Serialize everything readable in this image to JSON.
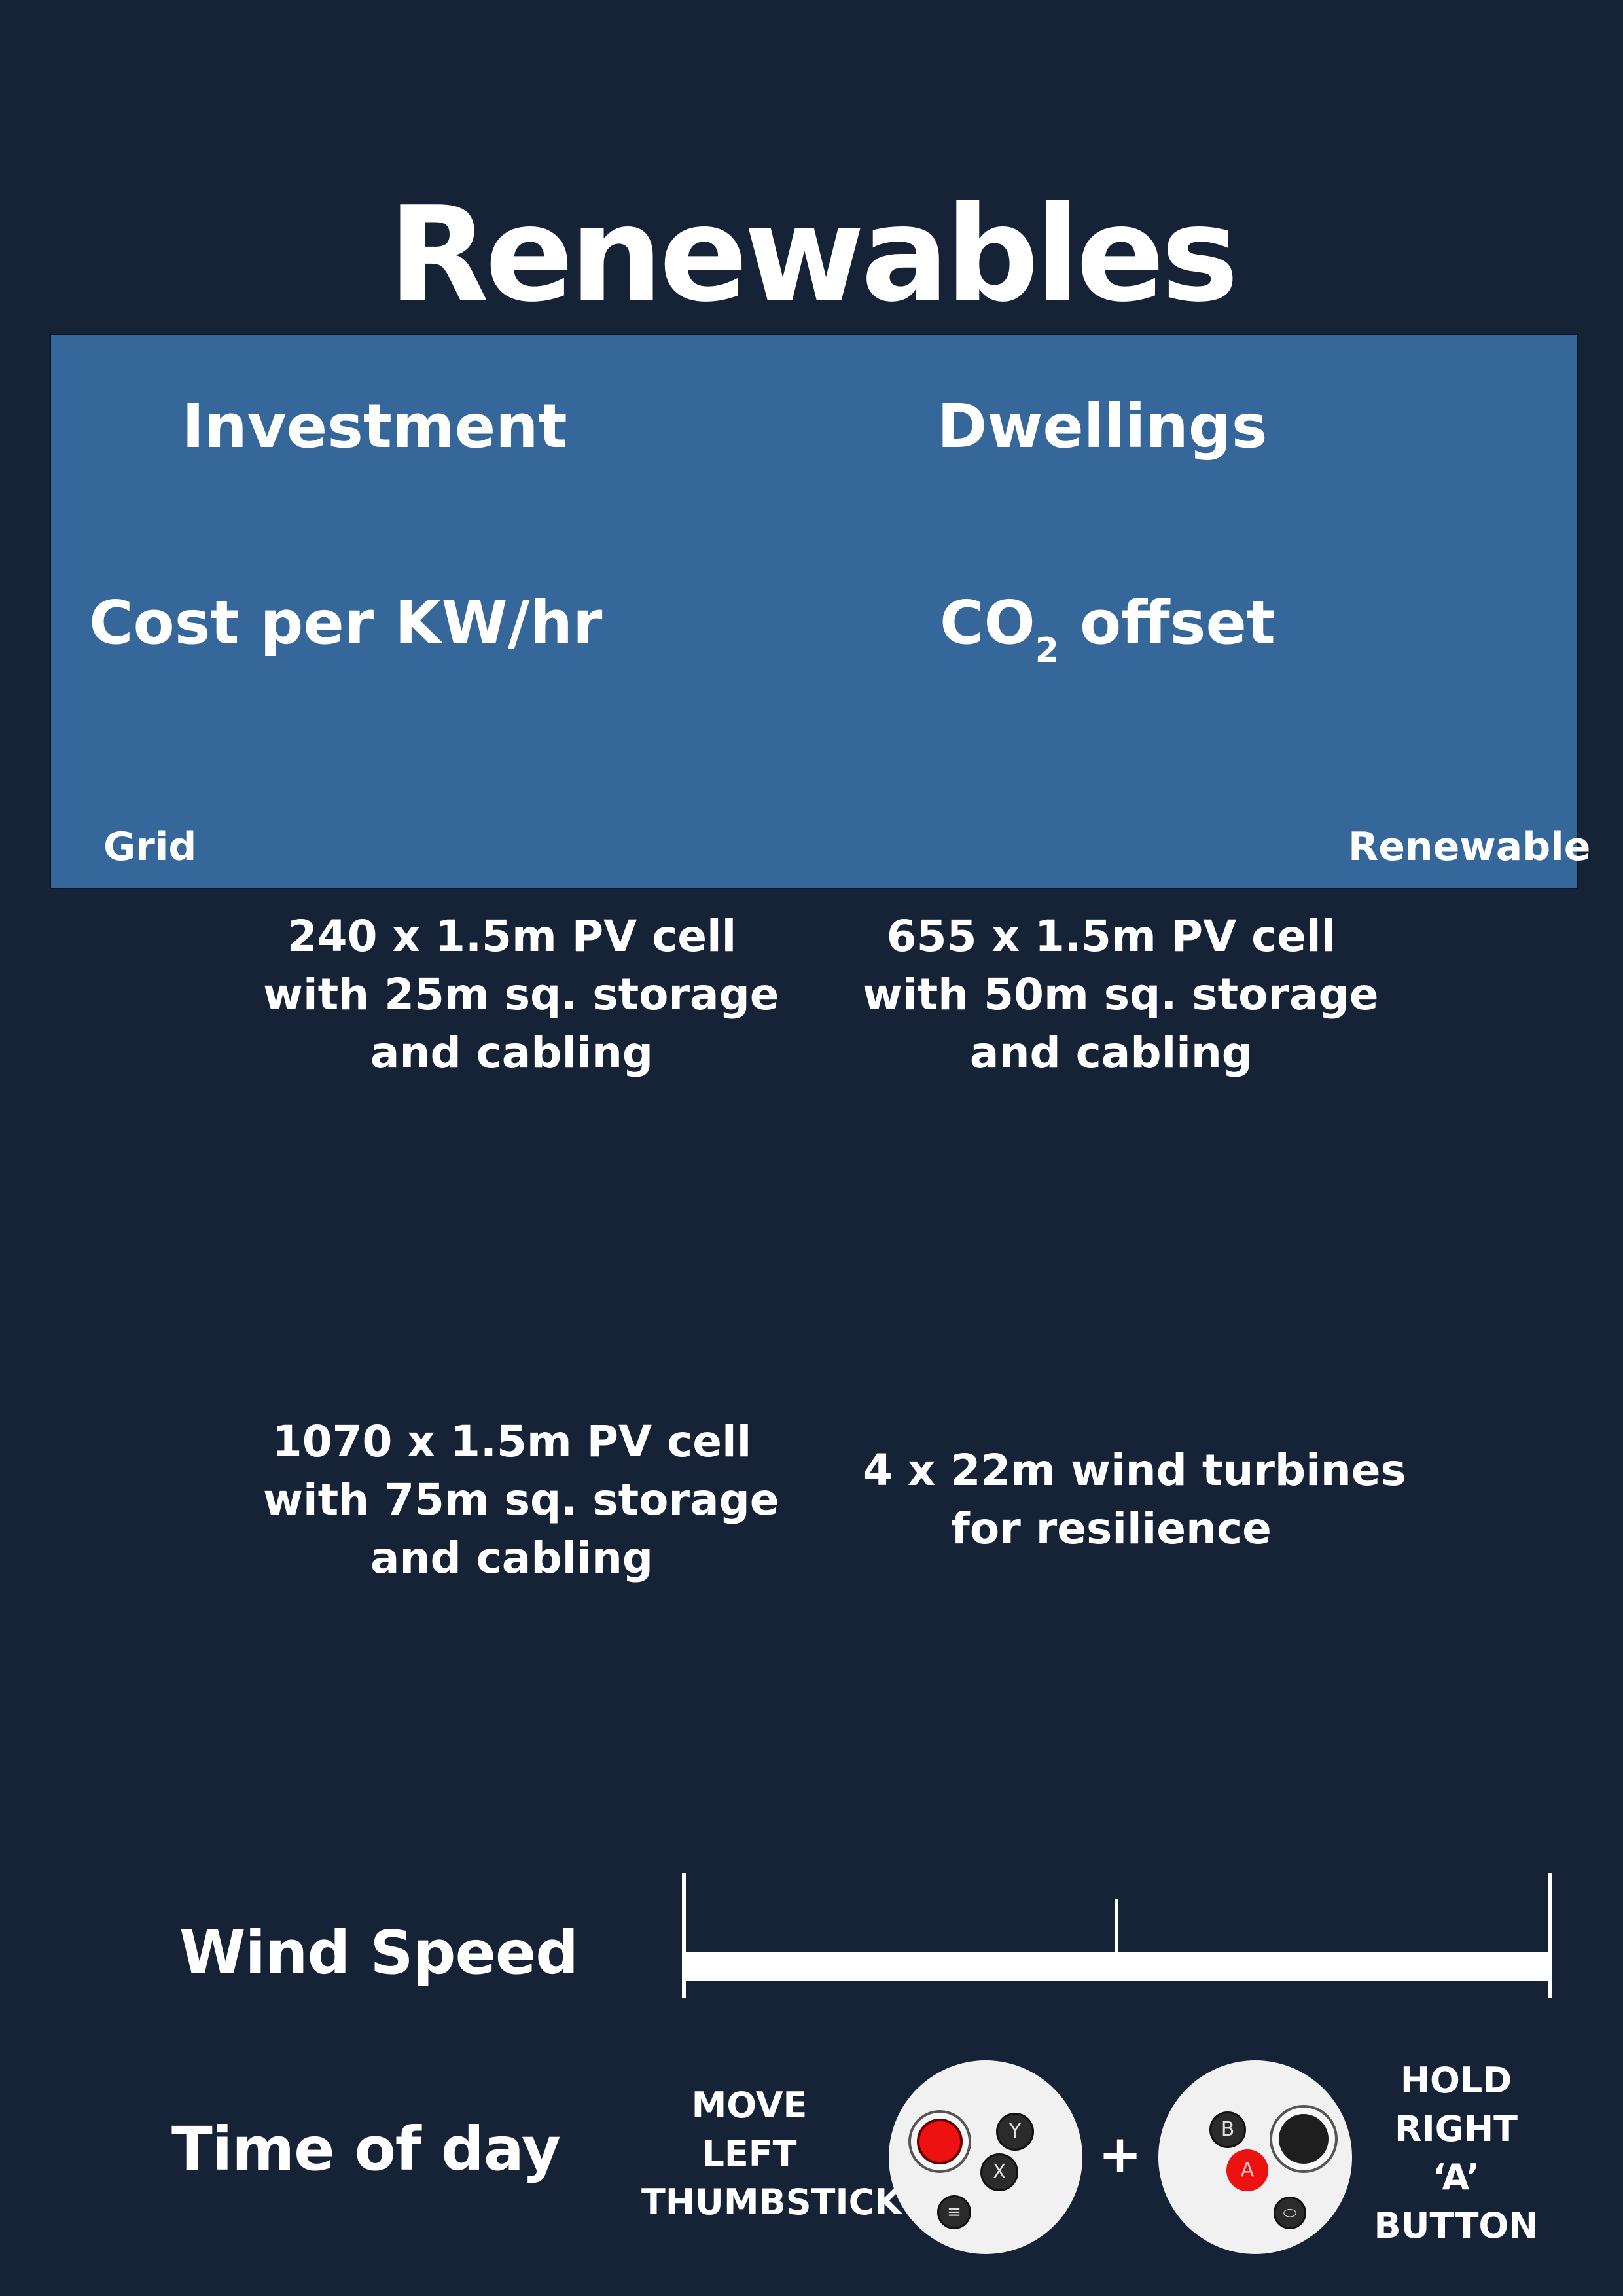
{
  "title": "Renewables",
  "panel": {
    "investment_label": "Investment",
    "dwellings_label": "Dwellings",
    "cost_label": "Cost per KW/hr",
    "co2_label_prefix": "CO",
    "co2_label_sub": "2",
    "co2_label_suffix": " offset",
    "grid_label": "Grid",
    "renewable_label": "Renewable",
    "bg_color": "#35679a"
  },
  "options": [
    {
      "lines": [
        "240 x 1.5m PV cell",
        "with 25m sq. storage",
        "and cabling"
      ]
    },
    {
      "lines": [
        "655 x 1.5m PV cell",
        "with 50m sq. storage",
        "and cabling"
      ]
    },
    {
      "lines": [
        "1070 x 1.5m PV cell",
        "with 75m sq. storage",
        "and cabling"
      ]
    },
    {
      "lines": [
        "4 x 22m wind turbines",
        "for resilience"
      ]
    }
  ],
  "wind_speed": {
    "label": "Wind Speed",
    "value": 0.5
  },
  "time_of_day": {
    "label": "Time of day"
  },
  "controls": {
    "left_hint": [
      "MOVE",
      "LEFT",
      "THUMBSTICK"
    ],
    "right_hint": [
      "HOLD",
      "RIGHT",
      "‘A’",
      "BUTTON"
    ],
    "plus": "+",
    "left_buttons": {
      "y": "Y",
      "x": "X",
      "menu": "≡"
    },
    "right_buttons": {
      "b": "B",
      "a": "A",
      "oculus": "⬭"
    },
    "highlight_color": "#ee1111"
  }
}
